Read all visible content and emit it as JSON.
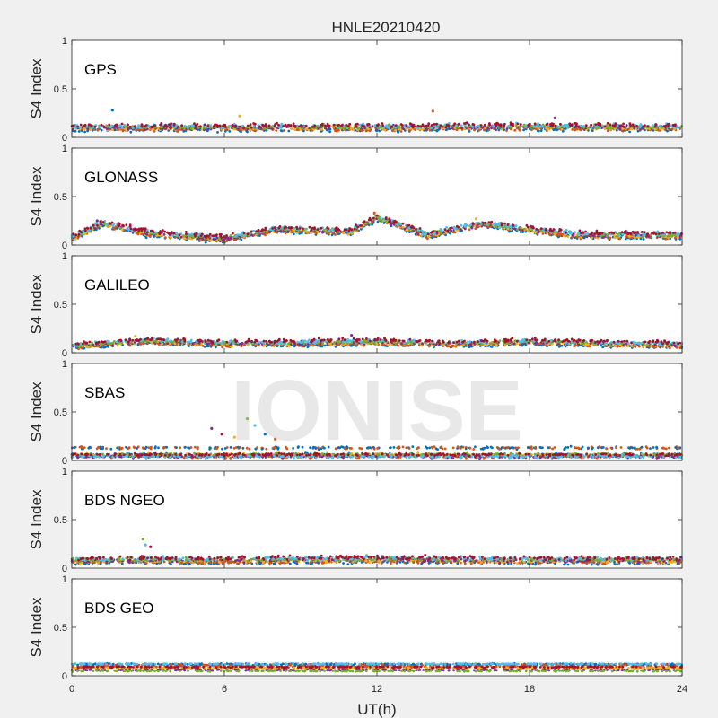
{
  "figure": {
    "title": "HNLE20210420",
    "xlabel": "UT(h)",
    "watermark": "IONISE"
  },
  "chart_data": {
    "type": "scatter",
    "title": "HNLE20210420",
    "xlabel": "UT(h)",
    "xlim": [
      0,
      24
    ],
    "xticks": [
      0,
      6,
      12,
      18,
      24
    ],
    "series_colors": [
      "#0072bd",
      "#d95319",
      "#edb120",
      "#7e2f8e",
      "#77ac30",
      "#4dbeee",
      "#a2142f"
    ],
    "panels": [
      {
        "name": "GPS",
        "ylabel": "S4 Index",
        "ylim": [
          0,
          1
        ],
        "yticks": [
          "0",
          "0.5",
          "1"
        ],
        "profile": [
          [
            0,
            0.1
          ],
          [
            6,
            0.1
          ],
          [
            12,
            0.1
          ],
          [
            18,
            0.11
          ],
          [
            24,
            0.1
          ]
        ],
        "noise": 0.03,
        "spikes": [
          [
            1.6,
            0.28
          ],
          [
            14.2,
            0.27
          ],
          [
            6.6,
            0.22
          ],
          [
            19.0,
            0.2
          ]
        ]
      },
      {
        "name": "GLONASS",
        "ylabel": "S4 Index",
        "ylim": [
          0,
          1
        ],
        "yticks": [
          "0",
          "0.5",
          "1"
        ],
        "profile": [
          [
            0,
            0.07
          ],
          [
            1.2,
            0.22
          ],
          [
            3,
            0.12
          ],
          [
            6,
            0.06
          ],
          [
            8,
            0.16
          ],
          [
            11,
            0.14
          ],
          [
            12,
            0.28
          ],
          [
            14,
            0.1
          ],
          [
            16,
            0.22
          ],
          [
            20,
            0.1
          ],
          [
            24,
            0.1
          ]
        ],
        "noise": 0.03,
        "spikes": [
          [
            11.9,
            0.33
          ],
          [
            15.9,
            0.27
          ],
          [
            1.0,
            0.25
          ]
        ]
      },
      {
        "name": "GALILEO",
        "ylabel": "S4 Index",
        "ylim": [
          0,
          1
        ],
        "yticks": [
          "0",
          "0.5",
          "1"
        ],
        "profile": [
          [
            0,
            0.07
          ],
          [
            3,
            0.12
          ],
          [
            6,
            0.09
          ],
          [
            9,
            0.1
          ],
          [
            12,
            0.11
          ],
          [
            15,
            0.09
          ],
          [
            18,
            0.11
          ],
          [
            24,
            0.08
          ]
        ],
        "noise": 0.025,
        "spikes": [
          [
            2.5,
            0.17
          ],
          [
            11.0,
            0.18
          ]
        ]
      },
      {
        "name": "SBAS",
        "ylabel": "S4 Index",
        "ylim": [
          0,
          1
        ],
        "yticks": [
          "0",
          "0.5",
          "1"
        ],
        "profile": [
          [
            0,
            0.13
          ],
          [
            24,
            0.13
          ]
        ],
        "noise": 0.02,
        "bands": [
          0.06,
          0.04
        ],
        "spikes": [
          [
            5.5,
            0.33
          ],
          [
            6.9,
            0.43
          ],
          [
            7.2,
            0.36
          ],
          [
            5.9,
            0.27
          ],
          [
            7.6,
            0.27
          ],
          [
            8.0,
            0.22
          ],
          [
            6.4,
            0.24
          ]
        ]
      },
      {
        "name": "BDS NGEO",
        "ylabel": "S4 Index",
        "ylim": [
          0,
          1
        ],
        "yticks": [
          "0",
          "0.5",
          "1"
        ],
        "profile": [
          [
            0,
            0.08
          ],
          [
            6,
            0.08
          ],
          [
            12,
            0.09
          ],
          [
            18,
            0.08
          ],
          [
            24,
            0.08
          ]
        ],
        "noise": 0.03,
        "spikes": [
          [
            2.8,
            0.3
          ],
          [
            2.9,
            0.24
          ],
          [
            3.1,
            0.22
          ]
        ]
      },
      {
        "name": "BDS GEO",
        "ylabel": "S4 Index",
        "ylim": [
          0,
          1
        ],
        "yticks": [
          "0",
          "0.5",
          "1"
        ],
        "profile": [
          [
            0,
            0.11
          ],
          [
            24,
            0.11
          ]
        ],
        "noise": 0.008,
        "bands": [
          0.12,
          0.09,
          0.08,
          0.06,
          0.05
        ],
        "spikes": []
      }
    ],
    "grid": false,
    "legend": "none"
  }
}
